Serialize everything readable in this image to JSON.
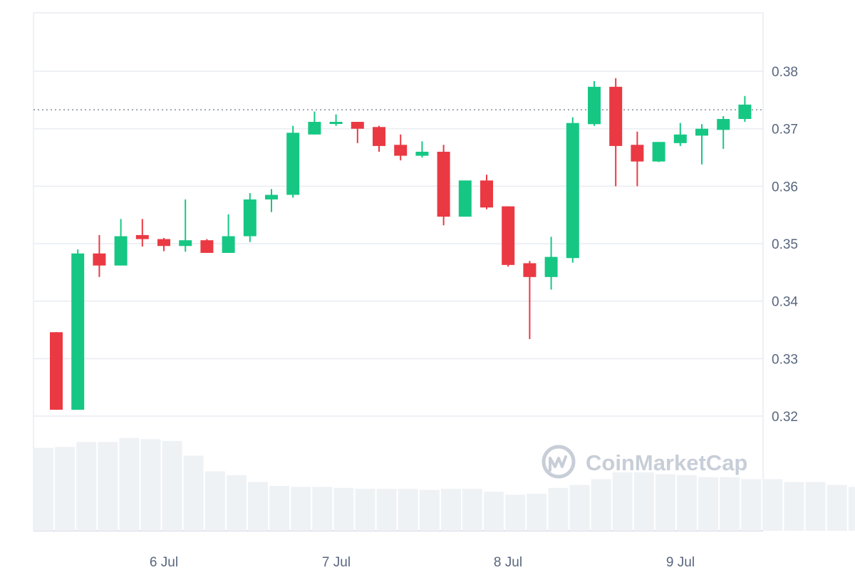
{
  "chart_data": {
    "type": "candlestick",
    "y_ticks": [
      "0.38",
      "0.37",
      "0.36",
      "0.35",
      "0.34",
      "0.33",
      "0.32"
    ],
    "y_tick_values": [
      0.38,
      0.37,
      0.36,
      0.35,
      0.34,
      0.33,
      0.32
    ],
    "ylim": [
      0.3198,
      0.3905
    ],
    "x_labels": [
      "6 Jul",
      "7 Jul",
      "8 Jul",
      "9 Jul"
    ],
    "current_price": 0.3733,
    "grid": true,
    "candles": [
      {
        "o": 0.3346,
        "h": 0.3346,
        "l": 0.3211,
        "c": 0.3211
      },
      {
        "o": 0.3211,
        "h": 0.349,
        "l": 0.3211,
        "c": 0.3483
      },
      {
        "o": 0.3483,
        "h": 0.3515,
        "l": 0.3442,
        "c": 0.3462
      },
      {
        "o": 0.3462,
        "h": 0.3543,
        "l": 0.3462,
        "c": 0.3513
      },
      {
        "o": 0.3515,
        "h": 0.3543,
        "l": 0.3495,
        "c": 0.3508
      },
      {
        "o": 0.3508,
        "h": 0.351,
        "l": 0.3487,
        "c": 0.3496
      },
      {
        "o": 0.3496,
        "h": 0.3577,
        "l": 0.3486,
        "c": 0.3506
      },
      {
        "o": 0.3506,
        "h": 0.3508,
        "l": 0.3484,
        "c": 0.3484
      },
      {
        "o": 0.3484,
        "h": 0.3551,
        "l": 0.3484,
        "c": 0.3513
      },
      {
        "o": 0.3513,
        "h": 0.3588,
        "l": 0.3503,
        "c": 0.3577
      },
      {
        "o": 0.3577,
        "h": 0.3595,
        "l": 0.3555,
        "c": 0.3585
      },
      {
        "o": 0.3585,
        "h": 0.3705,
        "l": 0.358,
        "c": 0.3693
      },
      {
        "o": 0.369,
        "h": 0.373,
        "l": 0.369,
        "c": 0.3712
      },
      {
        "o": 0.371,
        "h": 0.3725,
        "l": 0.3705,
        "c": 0.3712
      },
      {
        "o": 0.3712,
        "h": 0.3712,
        "l": 0.3675,
        "c": 0.37
      },
      {
        "o": 0.3703,
        "h": 0.3705,
        "l": 0.366,
        "c": 0.367
      },
      {
        "o": 0.3672,
        "h": 0.369,
        "l": 0.3645,
        "c": 0.3653
      },
      {
        "o": 0.3653,
        "h": 0.3678,
        "l": 0.365,
        "c": 0.366
      },
      {
        "o": 0.366,
        "h": 0.3672,
        "l": 0.3532,
        "c": 0.3547
      },
      {
        "o": 0.3547,
        "h": 0.361,
        "l": 0.3547,
        "c": 0.361
      },
      {
        "o": 0.361,
        "h": 0.362,
        "l": 0.356,
        "c": 0.3563
      },
      {
        "o": 0.3565,
        "h": 0.3565,
        "l": 0.346,
        "c": 0.3463
      },
      {
        "o": 0.3466,
        "h": 0.347,
        "l": 0.3334,
        "c": 0.3442
      },
      {
        "o": 0.3442,
        "h": 0.3512,
        "l": 0.342,
        "c": 0.3477
      },
      {
        "o": 0.3475,
        "h": 0.372,
        "l": 0.3467,
        "c": 0.371
      },
      {
        "o": 0.3708,
        "h": 0.3783,
        "l": 0.3705,
        "c": 0.3773
      },
      {
        "o": 0.3773,
        "h": 0.3788,
        "l": 0.36,
        "c": 0.367
      },
      {
        "o": 0.3672,
        "h": 0.3695,
        "l": 0.36,
        "c": 0.3643
      },
      {
        "o": 0.3643,
        "h": 0.3677,
        "l": 0.3642,
        "c": 0.3677
      },
      {
        "o": 0.3675,
        "h": 0.371,
        "l": 0.367,
        "c": 0.369
      },
      {
        "o": 0.3688,
        "h": 0.3708,
        "l": 0.3638,
        "c": 0.37
      },
      {
        "o": 0.3698,
        "h": 0.3722,
        "l": 0.3665,
        "c": 0.3717
      },
      {
        "o": 0.3717,
        "h": 0.3757,
        "l": 0.3712,
        "c": 0.3742
      }
    ],
    "volume_relative": [
      0.85,
      0.86,
      0.91,
      0.91,
      0.95,
      0.94,
      0.92,
      0.77,
      0.61,
      0.57,
      0.5,
      0.46,
      0.45,
      0.45,
      0.44,
      0.43,
      0.43,
      0.43,
      0.42,
      0.43,
      0.43,
      0.4,
      0.37,
      0.38,
      0.44,
      0.47,
      0.53,
      0.6,
      0.6,
      0.58,
      0.57,
      0.55,
      0.55,
      0.53,
      0.53,
      0.5,
      0.5,
      0.47,
      0.45,
      0.41,
      0.41,
      0.37,
      0.35
    ]
  },
  "colors": {
    "up": "#16c784",
    "down": "#ea3943",
    "grid": "#e9ecf1",
    "volume": "#eff2f5",
    "axis_text": "#58667e",
    "price_line": "#58667e",
    "watermark": "#c8ced8"
  },
  "watermark": {
    "icon": "coinmarketcap-logo-icon",
    "text": "CoinMarketCap"
  }
}
